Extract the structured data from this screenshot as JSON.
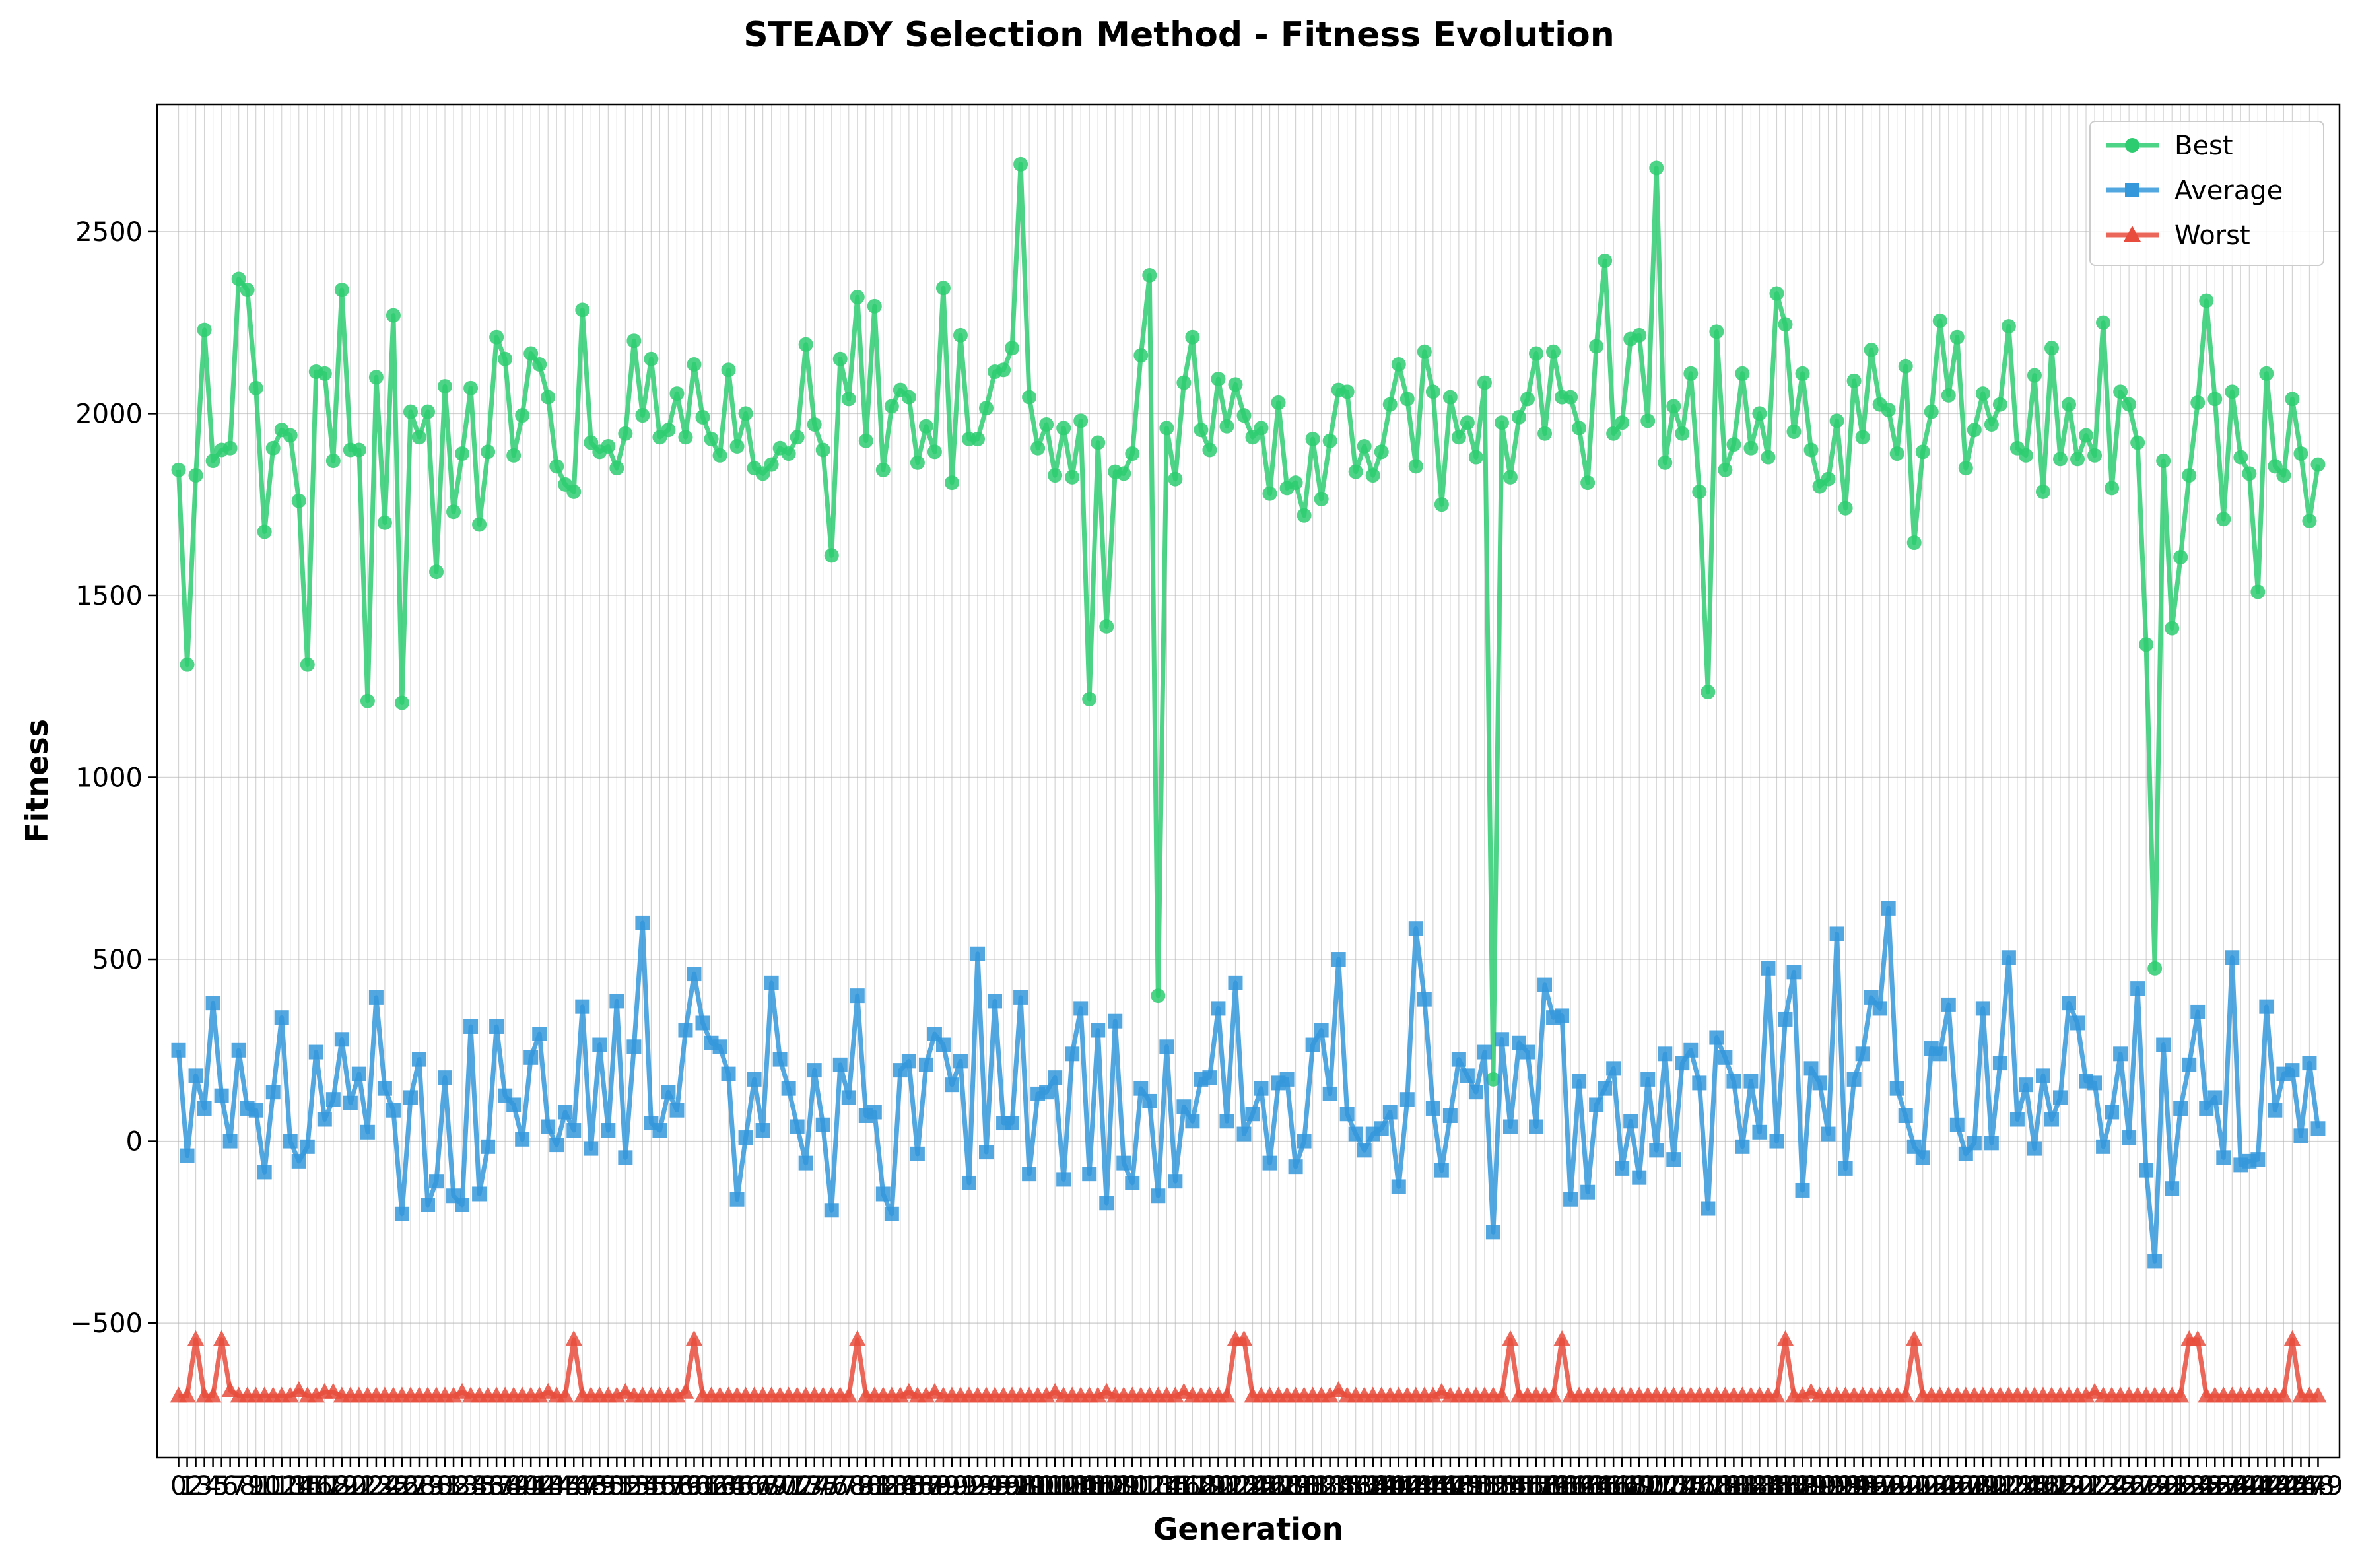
{
  "chart_data": {
    "type": "line",
    "title": "STEADY Selection Method - Fitness Evolution",
    "xlabel": "Generation",
    "ylabel": "Fitness",
    "xlim": [
      -2.5,
      251.5
    ],
    "ylim": [
      -870,
      2850
    ],
    "yticks": [
      -500,
      0,
      500,
      1000,
      1500,
      2000,
      2500
    ],
    "grid": true,
    "legend_position": "top-right",
    "x_start": 0,
    "x_count": 250,
    "series": [
      {
        "name": "Best",
        "color": "#2ecc71",
        "marker": "circle",
        "values": [
          1845,
          1310,
          1830,
          2230,
          1870,
          1900,
          1905,
          2370,
          2340,
          2070,
          1675,
          1905,
          1955,
          1940,
          1760,
          1310,
          2115,
          2110,
          1870,
          2340,
          1900,
          1900,
          1210,
          2100,
          1700,
          2270,
          1205,
          2005,
          1935,
          2005,
          1565,
          2075,
          1730,
          1890,
          2070,
          1695,
          1895,
          2210,
          2150,
          1885,
          1995,
          2165,
          2135,
          2045,
          1855,
          1805,
          1785,
          2285,
          1920,
          1895,
          1910,
          1850,
          1945,
          2200,
          1995,
          2150,
          1935,
          1955,
          2055,
          1935,
          2135,
          1990,
          1930,
          1885,
          2120,
          1910,
          2000,
          1850,
          1835,
          1860,
          1905,
          1890,
          1935,
          2190,
          1970,
          1900,
          1610,
          2150,
          2040,
          2320,
          1925,
          2295,
          1845,
          2020,
          2065,
          2045,
          1865,
          1965,
          1895,
          2345,
          1810,
          2215,
          1930,
          1930,
          2015,
          2115,
          2120,
          2180,
          2685,
          2045,
          1905,
          1970,
          1830,
          1960,
          1825,
          1980,
          1215,
          1920,
          1415,
          1840,
          1835,
          1890,
          2160,
          2380,
          400,
          1960,
          1820,
          2085,
          2210,
          1955,
          1900,
          2095,
          1965,
          2080,
          1995,
          1935,
          1960,
          1780,
          2030,
          1795,
          1810,
          1720,
          1930,
          1765,
          1925,
          2065,
          2060,
          1840,
          1910,
          1830,
          1895,
          2025,
          2135,
          2040,
          1855,
          2170,
          2060,
          1750,
          2045,
          1935,
          1975,
          1880,
          2085,
          170,
          1975,
          1825,
          1990,
          2040,
          2165,
          1945,
          2170,
          2045,
          2045,
          1960,
          1810,
          2185,
          2420,
          1945,
          1975,
          2205,
          2215,
          1980,
          2675,
          1865,
          2020,
          1945,
          2110,
          1785,
          1235,
          2225,
          1845,
          1915,
          2110,
          1905,
          2000,
          1880,
          2330,
          2245,
          1950,
          2110,
          1900,
          1800,
          1820,
          1980,
          1740,
          2090,
          1935,
          2175,
          2025,
          2010,
          1890,
          2130,
          1645,
          1895,
          2005,
          2255,
          2050,
          2210,
          1850,
          1955,
          2055,
          1970,
          2025,
          2240,
          1905,
          1885,
          2105,
          1785,
          2180,
          1875,
          2025,
          1875,
          1940,
          1885,
          2250,
          1795,
          2060,
          2025,
          1920,
          1365,
          475,
          1870,
          1410,
          1605,
          1830,
          2030,
          2310,
          2040,
          1710,
          2060,
          1880,
          1835,
          1510,
          2110,
          1855,
          1830,
          2040,
          1890,
          1705,
          1860
        ]
      },
      {
        "name": "Average",
        "color": "#3498db",
        "marker": "square",
        "values": [
          250,
          -40,
          180,
          90,
          380,
          125,
          0,
          250,
          90,
          85,
          -85,
          135,
          340,
          0,
          -55,
          -15,
          245,
          60,
          115,
          280,
          105,
          185,
          25,
          395,
          145,
          85,
          -200,
          120,
          225,
          -175,
          -110,
          175,
          -150,
          -175,
          315,
          -145,
          -15,
          315,
          125,
          100,
          5,
          230,
          295,
          40,
          -10,
          80,
          30,
          370,
          -20,
          265,
          30,
          385,
          -45,
          260,
          600,
          50,
          30,
          135,
          85,
          305,
          460,
          325,
          270,
          260,
          185,
          -160,
          10,
          170,
          30,
          435,
          225,
          145,
          40,
          -60,
          195,
          45,
          -190,
          210,
          120,
          400,
          70,
          80,
          -145,
          -200,
          195,
          220,
          -35,
          210,
          295,
          265,
          155,
          220,
          -115,
          515,
          -30,
          385,
          50,
          50,
          395,
          -90,
          130,
          135,
          175,
          -105,
          240,
          365,
          -90,
          305,
          -170,
          330,
          -60,
          -115,
          145,
          110,
          -150,
          260,
          -110,
          95,
          55,
          170,
          175,
          365,
          55,
          435,
          20,
          75,
          145,
          -60,
          160,
          170,
          -70,
          0,
          265,
          305,
          130,
          500,
          75,
          20,
          -25,
          20,
          35,
          80,
          -125,
          115,
          585,
          390,
          90,
          -80,
          70,
          225,
          180,
          135,
          245,
          -250,
          280,
          40,
          270,
          245,
          40,
          430,
          340,
          345,
          -160,
          165,
          -140,
          100,
          145,
          200,
          -75,
          55,
          -100,
          170,
          -25,
          240,
          -50,
          215,
          250,
          160,
          -185,
          285,
          230,
          165,
          -15,
          165,
          25,
          475,
          0,
          335,
          465,
          -135,
          200,
          160,
          20,
          570,
          -75,
          170,
          240,
          395,
          365,
          640,
          145,
          70,
          -15,
          -45,
          255,
          240,
          375,
          45,
          -35,
          -5,
          365,
          -5,
          215,
          505,
          60,
          155,
          -20,
          180,
          60,
          120,
          380,
          325,
          165,
          160,
          -15,
          80,
          240,
          10,
          420,
          -80,
          -330,
          265,
          -130,
          90,
          210,
          355,
          90,
          120,
          -45,
          505,
          -65,
          -55,
          -50,
          370,
          85,
          185,
          195,
          15,
          215,
          35
        ]
      },
      {
        "name": "Worst",
        "color": "#e74c3c",
        "marker": "triangle",
        "values": [
          -700,
          -700,
          -545,
          -700,
          -700,
          -545,
          -685,
          -700,
          -700,
          -700,
          -700,
          -700,
          -700,
          -700,
          -685,
          -700,
          -700,
          -690,
          -690,
          -700,
          -700,
          -700,
          -700,
          -700,
          -700,
          -700,
          -700,
          -700,
          -700,
          -700,
          -700,
          -700,
          -700,
          -690,
          -700,
          -700,
          -700,
          -700,
          -700,
          -700,
          -700,
          -700,
          -700,
          -690,
          -700,
          -700,
          -545,
          -700,
          -700,
          -700,
          -700,
          -700,
          -690,
          -700,
          -700,
          -700,
          -700,
          -700,
          -700,
          -690,
          -545,
          -700,
          -700,
          -700,
          -700,
          -700,
          -700,
          -700,
          -700,
          -700,
          -700,
          -700,
          -700,
          -700,
          -700,
          -700,
          -700,
          -700,
          -700,
          -545,
          -700,
          -700,
          -700,
          -700,
          -700,
          -690,
          -700,
          -700,
          -690,
          -700,
          -700,
          -700,
          -700,
          -700,
          -700,
          -700,
          -700,
          -700,
          -700,
          -700,
          -700,
          -700,
          -690,
          -700,
          -700,
          -700,
          -700,
          -700,
          -690,
          -700,
          -700,
          -700,
          -700,
          -700,
          -700,
          -700,
          -700,
          -690,
          -700,
          -700,
          -700,
          -700,
          -700,
          -545,
          -545,
          -700,
          -700,
          -700,
          -700,
          -700,
          -700,
          -700,
          -700,
          -700,
          -700,
          -685,
          -700,
          -700,
          -700,
          -700,
          -700,
          -700,
          -700,
          -700,
          -700,
          -700,
          -700,
          -690,
          -700,
          -700,
          -700,
          -700,
          -700,
          -700,
          -700,
          -545,
          -700,
          -700,
          -700,
          -700,
          -700,
          -545,
          -700,
          -700,
          -700,
          -700,
          -700,
          -700,
          -700,
          -700,
          -700,
          -700,
          -700,
          -700,
          -700,
          -700,
          -700,
          -700,
          -700,
          -700,
          -700,
          -700,
          -700,
          -700,
          -700,
          -700,
          -700,
          -545,
          -700,
          -700,
          -690,
          -700,
          -700,
          -700,
          -700,
          -700,
          -700,
          -700,
          -700,
          -700,
          -700,
          -700,
          -545,
          -700,
          -700,
          -700,
          -700,
          -700,
          -700,
          -700,
          -700,
          -700,
          -700,
          -700,
          -700,
          -700,
          -700,
          -700,
          -700,
          -700,
          -700,
          -700,
          -700,
          -690,
          -700,
          -700,
          -700,
          -700,
          -700,
          -700,
          -700,
          -700,
          -700,
          -700,
          -545,
          -545,
          -700,
          -700,
          -700,
          -700,
          -700,
          -700,
          -700,
          -700,
          -700,
          -700,
          -545,
          -700,
          -700,
          -700,
          -700
        ]
      }
    ]
  }
}
